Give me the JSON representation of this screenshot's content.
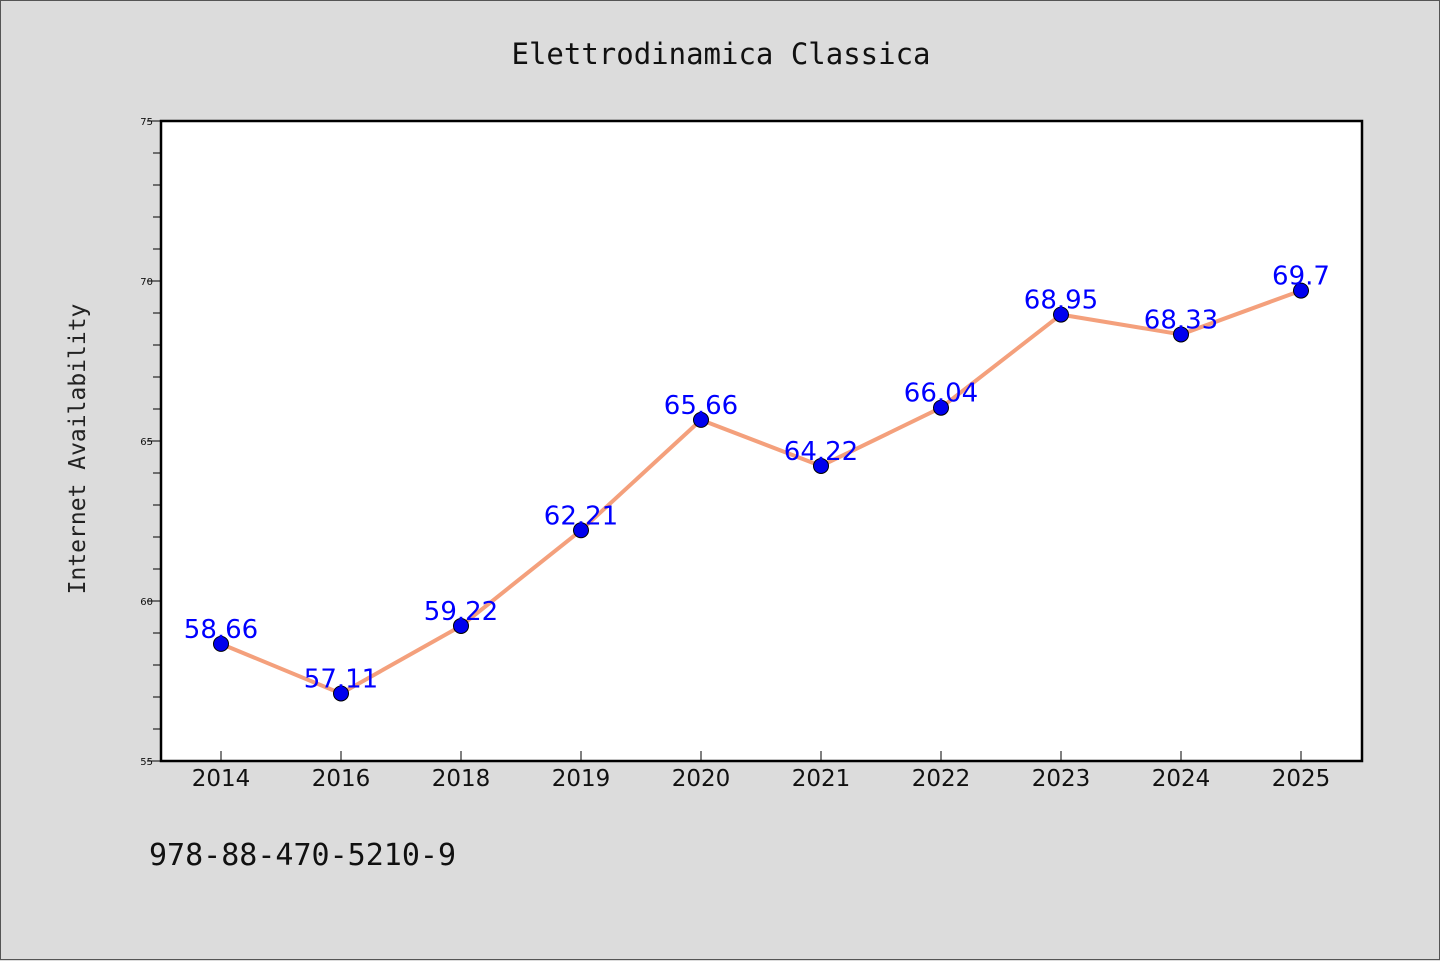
{
  "chart_data": {
    "type": "line",
    "title": "Elettrodinamica Classica",
    "xlabel": "",
    "ylabel": "Internet Availability",
    "categories": [
      "2014",
      "2016",
      "2018",
      "2019",
      "2020",
      "2021",
      "2022",
      "2023",
      "2024",
      "2025"
    ],
    "series": [
      {
        "values": [
          58.66,
          57.11,
          59.22,
          62.21,
          65.66,
          64.22,
          66.04,
          68.95,
          68.33,
          69.7
        ],
        "labels": [
          "58.66",
          "57.11",
          "59.22",
          "62.21",
          "65.66",
          "64.22",
          "66.04",
          "68.95",
          "68.33",
          "69.7"
        ],
        "line_color": "#f4a07c",
        "marker_color": "#0000ee",
        "label_color": "#0000ff"
      }
    ],
    "ylim": [
      55,
      75
    ],
    "yticks": [
      "55",
      "60",
      "65",
      "70",
      "75"
    ],
    "grid": false,
    "legend": "none"
  },
  "footer": {
    "isbn": "978-88-470-5210-9"
  },
  "colors": {
    "background": "#dcdcdc",
    "plot_background": "#ffffff"
  }
}
